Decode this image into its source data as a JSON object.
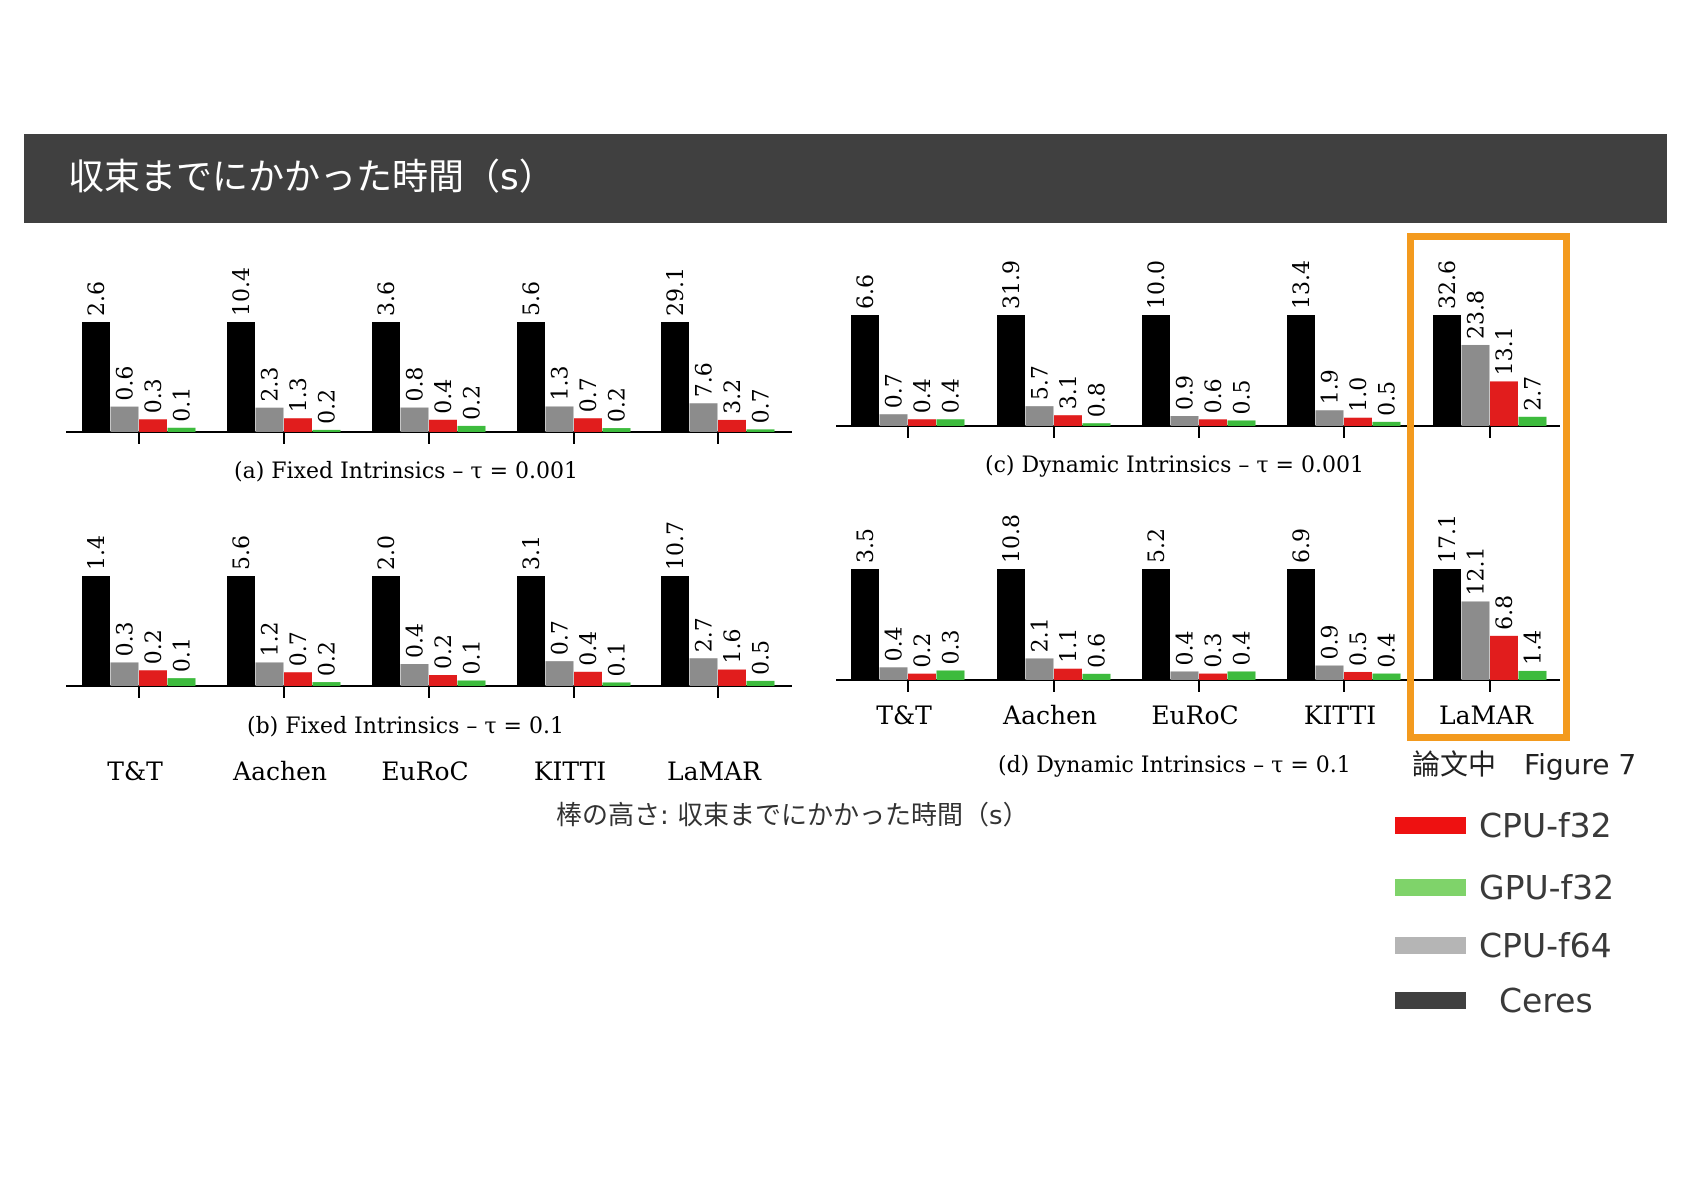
{
  "header": {
    "title": "収束までにかかった時間（s）"
  },
  "figure_ref": "論文中　Figure 7",
  "bar_note": "棒の高さ: 収束までにかかった時間（s）",
  "legend": [
    {
      "label": "CPU-f32",
      "color": "#ee1111"
    },
    {
      "label": "GPU-f32",
      "color": "#7fd36a"
    },
    {
      "label": "CPU-f64",
      "color": "#b5b5b5"
    },
    {
      "label": "Ceres",
      "color": "#404040"
    }
  ],
  "highlight_color": "#f39a1e",
  "chart_data": [
    {
      "type": "bar",
      "title": "(a) Fixed Intrinsics – τ = 0.001",
      "categories": [
        "T&T",
        "Aachen",
        "EuRoC",
        "KITTI",
        "LaMAR"
      ],
      "series": [
        {
          "name": "Ceres",
          "color": "#000000",
          "values": [
            2.6,
            10.4,
            3.6,
            5.6,
            29.1
          ]
        },
        {
          "name": "CPU-f64",
          "color": "#8c8c8c",
          "values": [
            0.6,
            2.3,
            0.8,
            1.3,
            7.6
          ]
        },
        {
          "name": "CPU-f32",
          "color": "#e11d1d",
          "values": [
            0.3,
            1.3,
            0.4,
            0.7,
            3.2
          ]
        },
        {
          "name": "GPU-f32",
          "color": "#3dbb3d",
          "values": [
            0.1,
            0.2,
            0.2,
            0.2,
            0.7
          ]
        }
      ]
    },
    {
      "type": "bar",
      "title": "(b) Fixed Intrinsics – τ = 0.1",
      "categories": [
        "T&T",
        "Aachen",
        "EuRoC",
        "KITTI",
        "LaMAR"
      ],
      "series": [
        {
          "name": "Ceres",
          "color": "#000000",
          "values": [
            1.4,
            5.6,
            2.0,
            3.1,
            10.7
          ]
        },
        {
          "name": "CPU-f64",
          "color": "#8c8c8c",
          "values": [
            0.3,
            1.2,
            0.4,
            0.7,
            2.7
          ]
        },
        {
          "name": "CPU-f32",
          "color": "#e11d1d",
          "values": [
            0.2,
            0.7,
            0.2,
            0.4,
            1.6
          ]
        },
        {
          "name": "GPU-f32",
          "color": "#3dbb3d",
          "values": [
            0.1,
            0.2,
            0.1,
            0.1,
            0.5
          ]
        }
      ]
    },
    {
      "type": "bar",
      "title": "(c) Dynamic Intrinsics – τ = 0.001",
      "categories": [
        "T&T",
        "Aachen",
        "EuRoC",
        "KITTI",
        "LaMAR"
      ],
      "series": [
        {
          "name": "Ceres",
          "color": "#000000",
          "values": [
            6.6,
            31.9,
            10.0,
            13.4,
            32.6
          ]
        },
        {
          "name": "CPU-f64",
          "color": "#8c8c8c",
          "values": [
            0.7,
            5.7,
            0.9,
            1.9,
            23.8
          ]
        },
        {
          "name": "CPU-f32",
          "color": "#e11d1d",
          "values": [
            0.4,
            3.1,
            0.6,
            1.0,
            13.1
          ]
        },
        {
          "name": "GPU-f32",
          "color": "#3dbb3d",
          "values": [
            0.4,
            0.8,
            0.5,
            0.5,
            2.7
          ]
        }
      ]
    },
    {
      "type": "bar",
      "title": "(d) Dynamic Intrinsics – τ = 0.1",
      "categories": [
        "T&T",
        "Aachen",
        "EuRoC",
        "KITTI",
        "LaMAR"
      ],
      "series": [
        {
          "name": "Ceres",
          "color": "#000000",
          "values": [
            3.5,
            10.8,
            5.2,
            6.9,
            17.1
          ]
        },
        {
          "name": "CPU-f64",
          "color": "#8c8c8c",
          "values": [
            0.4,
            2.1,
            0.4,
            0.9,
            12.1
          ]
        },
        {
          "name": "CPU-f32",
          "color": "#e11d1d",
          "values": [
            0.2,
            1.1,
            0.3,
            0.5,
            6.8
          ]
        },
        {
          "name": "GPU-f32",
          "color": "#3dbb3d",
          "values": [
            0.3,
            0.6,
            0.4,
            0.4,
            1.4
          ]
        }
      ]
    }
  ]
}
